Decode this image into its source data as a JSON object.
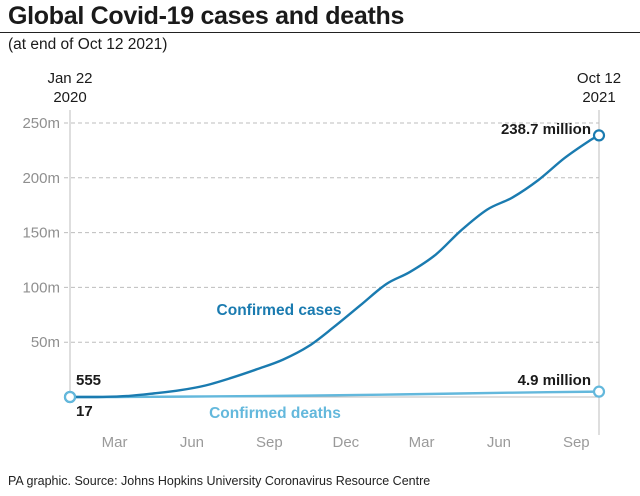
{
  "header": {
    "title": "Global Covid-19 cases and deaths",
    "subtitle": "(at end of Oct 12 2021)"
  },
  "footer": {
    "source": "PA graphic. Source: Johns Hopkins University Coronavirus Resource Centre"
  },
  "colors": {
    "cases": "#1a7bb0",
    "deaths": "#63b8dc",
    "grid": "#bdbdbd",
    "text": "#1a1a1a"
  },
  "chart_data": {
    "type": "line",
    "title": "Global Covid-19 cases and deaths",
    "subtitle": "(at end of Oct 12 2021)",
    "xlim": [
      "2020-01-22",
      "2021-10-12"
    ],
    "ylim": [
      0,
      250000000
    ],
    "yticks": [
      {
        "value": 50000000,
        "label": "50m"
      },
      {
        "value": 100000000,
        "label": "100m"
      },
      {
        "value": 150000000,
        "label": "150m"
      },
      {
        "value": 200000000,
        "label": "200m"
      },
      {
        "value": 250000000,
        "label": "250m"
      }
    ],
    "xticks": [
      {
        "date": "2020-03-15",
        "label": "Mar"
      },
      {
        "date": "2020-06-15",
        "label": "Jun"
      },
      {
        "date": "2020-09-15",
        "label": "Sep"
      },
      {
        "date": "2020-12-15",
        "label": "Dec"
      },
      {
        "date": "2021-03-15",
        "label": "Mar"
      },
      {
        "date": "2021-06-15",
        "label": "Jun"
      },
      {
        "date": "2021-09-15",
        "label": "Sep"
      }
    ],
    "start_label": {
      "line1": "Jan 22",
      "line2": "2020"
    },
    "end_label": {
      "line1": "Oct 12",
      "line2": "2021"
    },
    "grid": true,
    "legend": "inline labels",
    "series": [
      {
        "name": "Confirmed cases",
        "color": "#1a7bb0",
        "start_value_label": "555",
        "end_value_label": "238.7 million",
        "points": [
          [
            "2020-01-22",
            555
          ],
          [
            "2020-03-01",
            90000
          ],
          [
            "2020-04-01",
            1000000
          ],
          [
            "2020-05-01",
            3300000
          ],
          [
            "2020-06-01",
            6200000
          ],
          [
            "2020-07-01",
            10500000
          ],
          [
            "2020-08-01",
            17500000
          ],
          [
            "2020-09-01",
            25500000
          ],
          [
            "2020-10-01",
            34000000
          ],
          [
            "2020-11-01",
            46500000
          ],
          [
            "2020-12-01",
            64000000
          ],
          [
            "2021-01-01",
            83500000
          ],
          [
            "2021-02-01",
            103000000
          ],
          [
            "2021-03-01",
            114000000
          ],
          [
            "2021-04-01",
            130000000
          ],
          [
            "2021-05-01",
            152000000
          ],
          [
            "2021-06-01",
            171000000
          ],
          [
            "2021-07-01",
            182000000
          ],
          [
            "2021-08-01",
            198000000
          ],
          [
            "2021-09-01",
            218000000
          ],
          [
            "2021-10-01",
            234000000
          ],
          [
            "2021-10-12",
            238700000
          ]
        ]
      },
      {
        "name": "Confirmed deaths",
        "color": "#63b8dc",
        "start_value_label": "17",
        "end_value_label": "4.9 million",
        "points": [
          [
            "2020-01-22",
            17
          ],
          [
            "2020-04-01",
            50000
          ],
          [
            "2020-07-01",
            520000
          ],
          [
            "2020-10-01",
            1020000
          ],
          [
            "2021-01-01",
            1840000
          ],
          [
            "2021-04-01",
            2850000
          ],
          [
            "2021-07-01",
            3960000
          ],
          [
            "2021-10-12",
            4900000
          ]
        ]
      }
    ]
  }
}
